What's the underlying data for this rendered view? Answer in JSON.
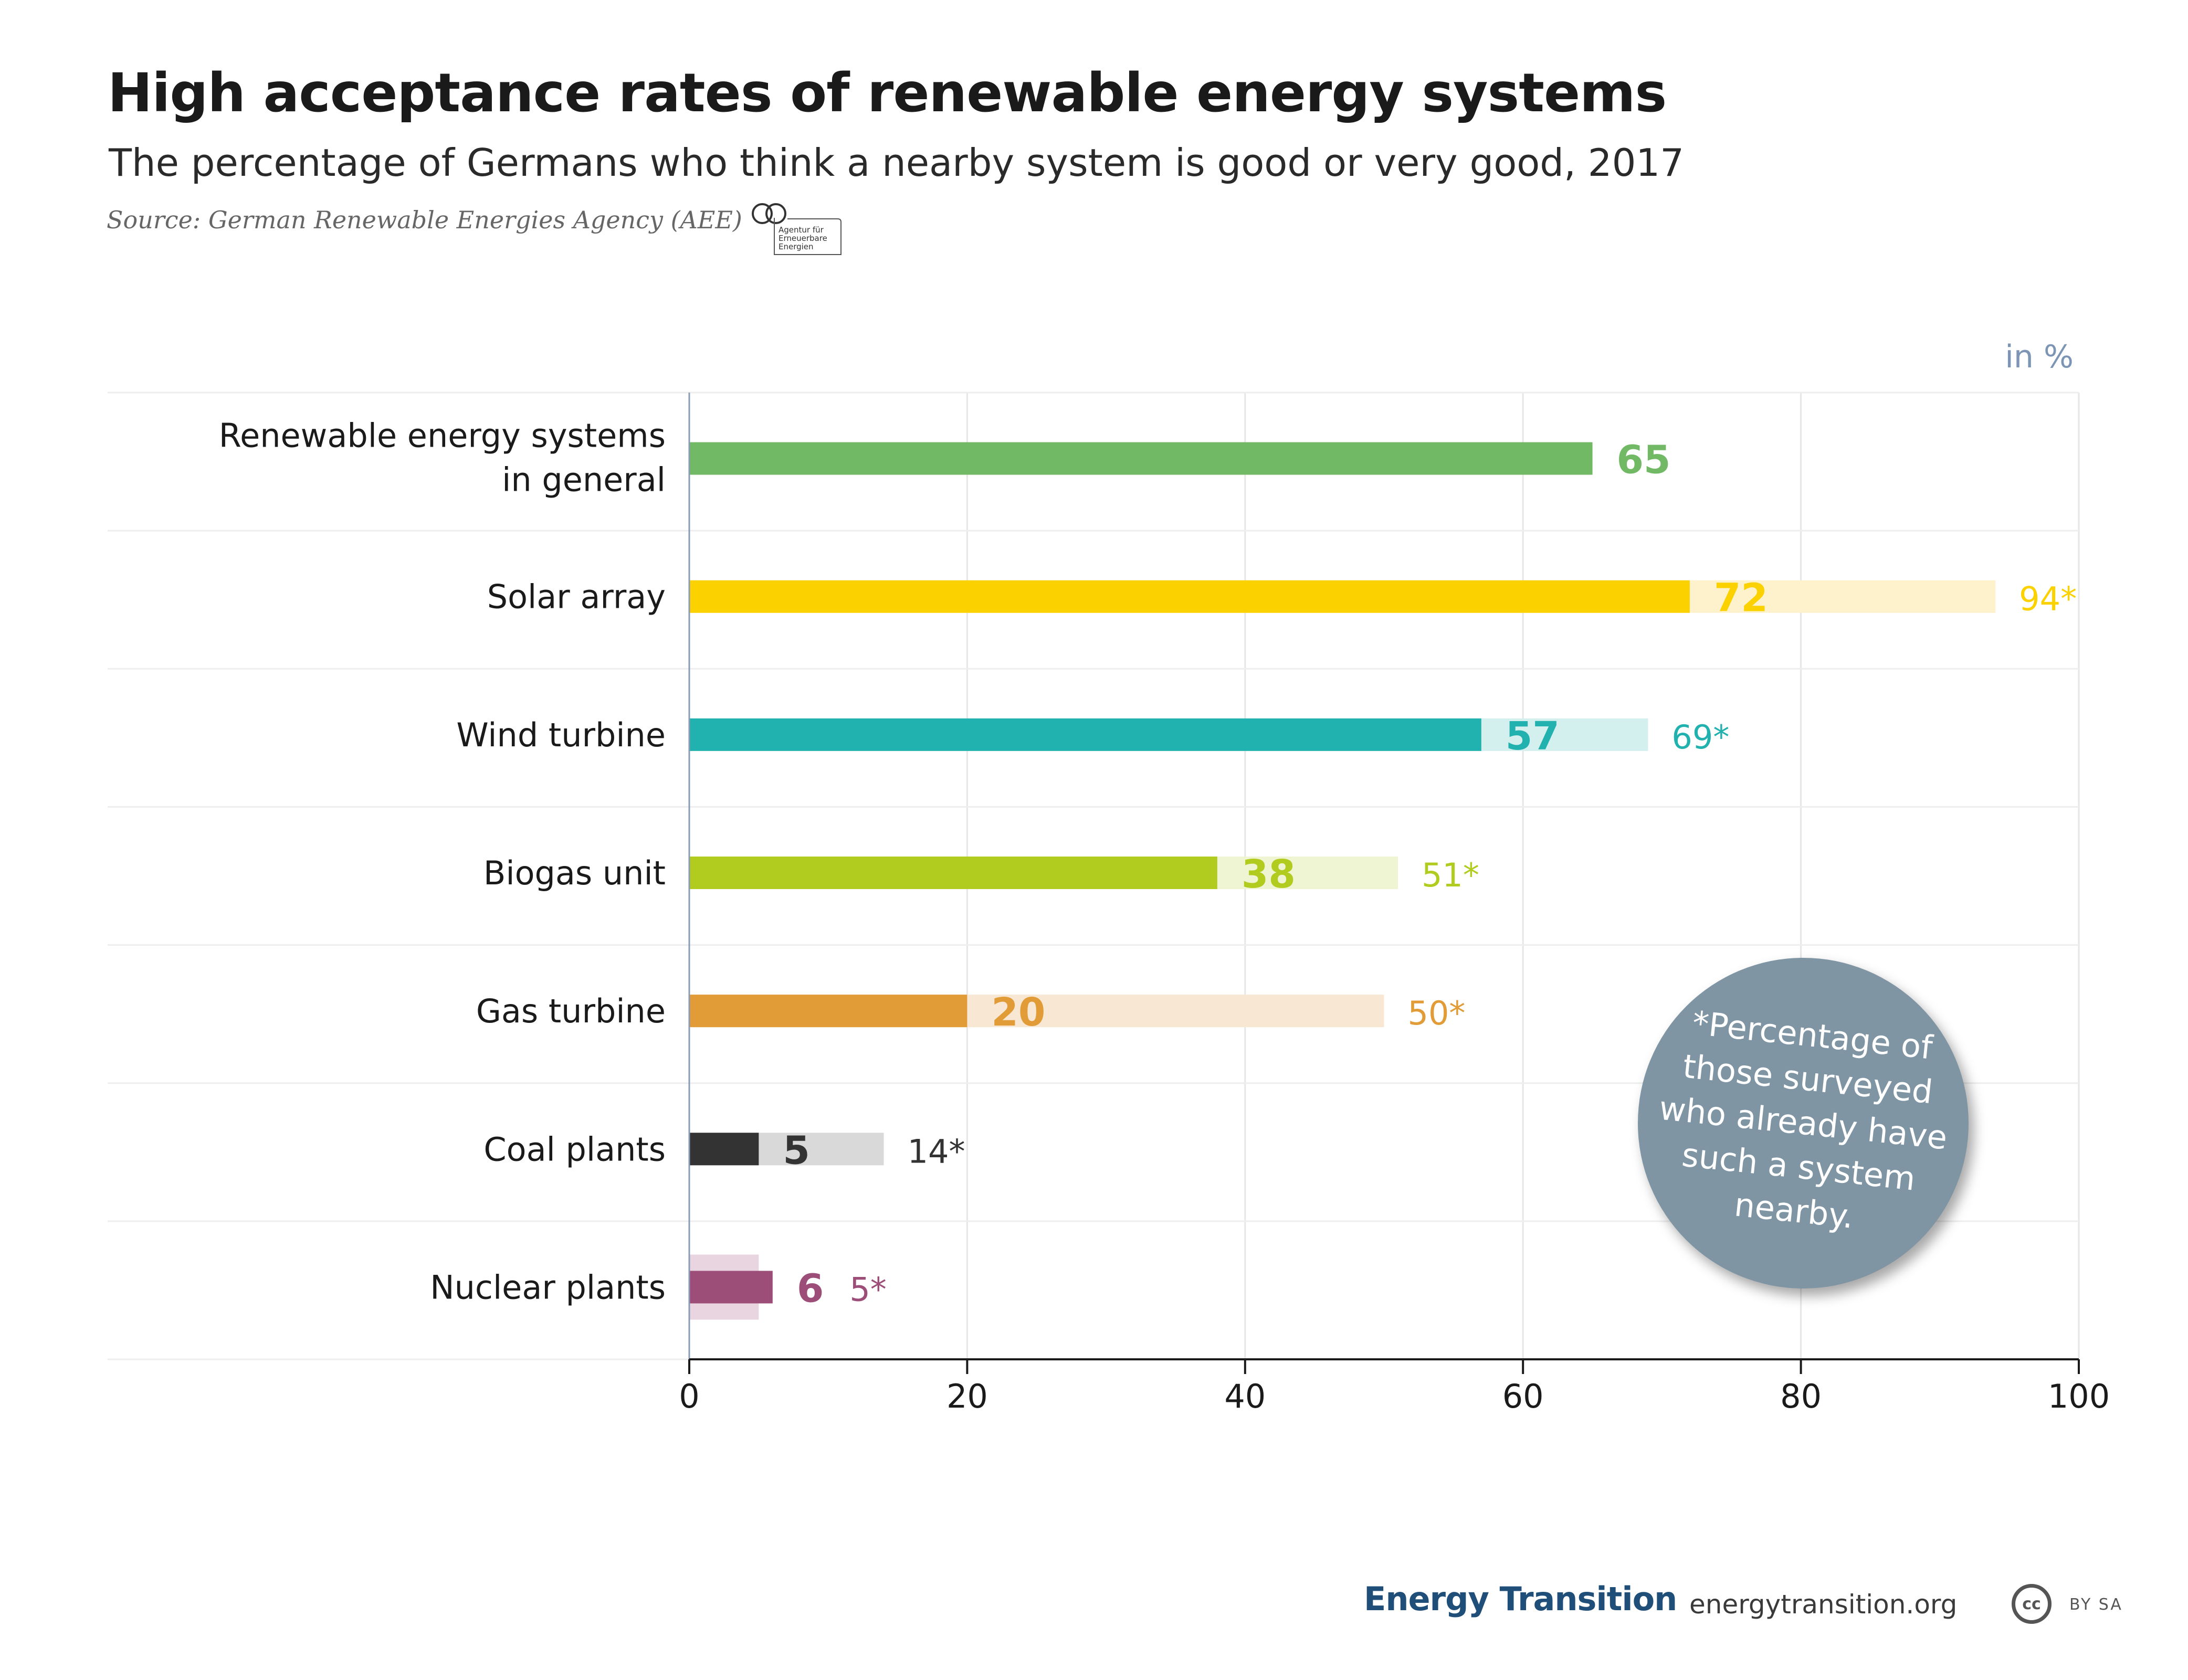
{
  "header": {
    "title": "High acceptance rates of renewable energy systems",
    "subtitle": "The percentage of Germans who think a nearby system is good or very good, 2017",
    "source": "Source: German Renewable Energies Agency (AEE)",
    "source_logo_lines": [
      "Agentur für",
      "Erneuerbare",
      "Energien"
    ]
  },
  "callout": {
    "text": "*Percentage of those surveyed who already have such a system nearby."
  },
  "footer": {
    "brand": "Energy Transition",
    "url": "energytransition.org",
    "license_badge": "cc",
    "license_extra": "BY SA"
  },
  "chart_data": {
    "type": "bar",
    "orientation": "horizontal",
    "unit_label": "in %",
    "xlim": [
      0,
      100
    ],
    "x_ticks": [
      0,
      20,
      40,
      60,
      80,
      100
    ],
    "grid": true,
    "categories": [
      "Renewable energy systems in general",
      "Solar array",
      "Wind turbine",
      "Biogas unit",
      "Gas turbine",
      "Coal plants",
      "Nuclear plants"
    ],
    "series": [
      {
        "values": [
          65,
          72,
          57,
          38,
          20,
          5,
          6
        ],
        "labels": [
          "65",
          "72",
          "57",
          "38",
          "20",
          "5",
          "6"
        ]
      },
      {
        "values": [
          null,
          94,
          69,
          51,
          50,
          14,
          5
        ],
        "labels": [
          "",
          "94*",
          "69*",
          "51*",
          "50*",
          "14*",
          "5*"
        ]
      }
    ],
    "colors": [
      "#72b965",
      "#fbd100",
      "#21b1ae",
      "#b2cb1f",
      "#e19b37",
      "#333333",
      "#9c4d78"
    ],
    "light_colors": [
      "#d8edd3",
      "#fdf2cc",
      "#d3efee",
      "#eff4d2",
      "#f8e8d3",
      "#d9d9d9",
      "#e8d5df"
    ]
  }
}
